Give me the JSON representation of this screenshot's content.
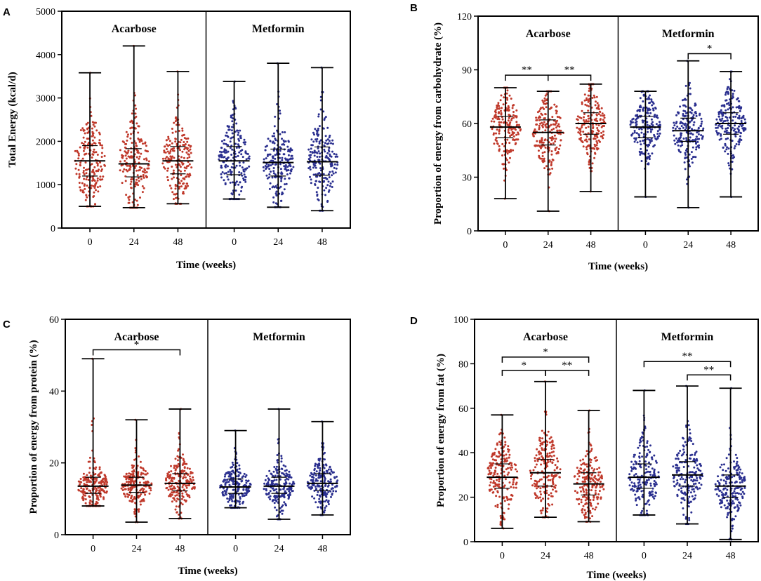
{
  "colors": {
    "acarbose": "#c0392b",
    "metformin": "#2a2f8f",
    "axis": "#000000"
  },
  "chart_data": [
    {
      "panel": "A",
      "type": "scatter",
      "ylabel": "Total Energy (kcal/d)",
      "xlabel": "Time (weeks)",
      "ylim": [
        0,
        5000
      ],
      "yticks": [
        0,
        1000,
        2000,
        3000,
        4000,
        5000
      ],
      "groups": [
        {
          "name": "Acarbose",
          "color_key": "acarbose",
          "timepoints": [
            {
              "week": "0",
              "median": 1550,
              "q1": 1200,
              "q3": 1900,
              "min": 500,
              "max": 3580
            },
            {
              "week": "24",
              "median": 1480,
              "q1": 1180,
              "q3": 1830,
              "min": 470,
              "max": 4200
            },
            {
              "week": "48",
              "median": 1550,
              "q1": 1250,
              "q3": 1880,
              "min": 560,
              "max": 3610
            }
          ]
        },
        {
          "name": "Metformin",
          "color_key": "metformin",
          "timepoints": [
            {
              "week": "0",
              "median": 1550,
              "q1": 1230,
              "q3": 1880,
              "min": 670,
              "max": 3380
            },
            {
              "week": "24",
              "median": 1510,
              "q1": 1200,
              "q3": 1820,
              "min": 480,
              "max": 3800
            },
            {
              "week": "48",
              "median": 1530,
              "q1": 1220,
              "q3": 1870,
              "min": 400,
              "max": 3700
            }
          ]
        }
      ],
      "significance": []
    },
    {
      "panel": "B",
      "type": "scatter",
      "ylabel": "Proportion of energy from carbohydrate (%)",
      "xlabel": "Time (weeks)",
      "ylim": [
        0,
        120
      ],
      "yticks": [
        0,
        30,
        60,
        90,
        120
      ],
      "groups": [
        {
          "name": "Acarbose",
          "color_key": "acarbose",
          "timepoints": [
            {
              "week": "0",
              "median": 58,
              "q1": 52,
              "q3": 64,
              "min": 18,
              "max": 80
            },
            {
              "week": "24",
              "median": 55,
              "q1": 48,
              "q3": 62,
              "min": 11,
              "max": 78
            },
            {
              "week": "48",
              "median": 60,
              "q1": 54,
              "q3": 66,
              "min": 22,
              "max": 82
            }
          ]
        },
        {
          "name": "Metformin",
          "color_key": "metformin",
          "timepoints": [
            {
              "week": "0",
              "median": 58,
              "q1": 52,
              "q3": 64,
              "min": 19,
              "max": 78
            },
            {
              "week": "24",
              "median": 56,
              "q1": 50,
              "q3": 63,
              "min": 13,
              "max": 95
            },
            {
              "week": "48",
              "median": 60,
              "q1": 54,
              "q3": 66,
              "min": 19,
              "max": 89
            }
          ]
        }
      ],
      "significance": [
        {
          "group": 0,
          "from": 0,
          "to": 1,
          "y": 87,
          "label": "**"
        },
        {
          "group": 0,
          "from": 1,
          "to": 2,
          "y": 87,
          "label": "**"
        },
        {
          "group": 1,
          "from": 1,
          "to": 2,
          "y": 99,
          "label": "*"
        }
      ]
    },
    {
      "panel": "C",
      "type": "scatter",
      "ylabel": "Proportion of energy from protein (%)",
      "xlabel": "Time (weeks)",
      "ylim": [
        0,
        60
      ],
      "yticks": [
        0,
        20,
        40,
        60
      ],
      "groups": [
        {
          "name": "Acarbose",
          "color_key": "acarbose",
          "timepoints": [
            {
              "week": "0",
              "median": 13.5,
              "q1": 11.5,
              "q3": 16,
              "min": 8,
              "max": 49
            },
            {
              "week": "24",
              "median": 13.8,
              "q1": 11.8,
              "q3": 16,
              "min": 3.5,
              "max": 32
            },
            {
              "week": "48",
              "median": 14.3,
              "q1": 12.2,
              "q3": 17,
              "min": 4.5,
              "max": 35
            }
          ]
        },
        {
          "name": "Metformin",
          "color_key": "metformin",
          "timepoints": [
            {
              "week": "0",
              "median": 13.3,
              "q1": 11.5,
              "q3": 15.5,
              "min": 7.5,
              "max": 29
            },
            {
              "week": "24",
              "median": 13.5,
              "q1": 11.5,
              "q3": 16,
              "min": 4.3,
              "max": 35
            },
            {
              "week": "48",
              "median": 14.3,
              "q1": 12.3,
              "q3": 17,
              "min": 5.5,
              "max": 31.5
            }
          ]
        }
      ],
      "significance": [
        {
          "group": 0,
          "from": 0,
          "to": 2,
          "y": 51.5,
          "label": "*"
        }
      ]
    },
    {
      "panel": "D",
      "type": "scatter",
      "ylabel": "Proportion of energy from fat (%)",
      "xlabel": "Time (weeks)",
      "ylim": [
        0,
        100
      ],
      "yticks": [
        0,
        20,
        40,
        60,
        80,
        100
      ],
      "groups": [
        {
          "name": "Acarbose",
          "color_key": "acarbose",
          "timepoints": [
            {
              "week": "0",
              "median": 29,
              "q1": 24,
              "q3": 35,
              "min": 6,
              "max": 57
            },
            {
              "week": "24",
              "median": 31,
              "q1": 25,
              "q3": 37,
              "min": 11,
              "max": 72
            },
            {
              "week": "48",
              "median": 26,
              "q1": 21,
              "q3": 31,
              "min": 9,
              "max": 59
            }
          ]
        },
        {
          "name": "Metformin",
          "color_key": "metformin",
          "timepoints": [
            {
              "week": "0",
              "median": 29,
              "q1": 24,
              "q3": 35,
              "min": 12,
              "max": 68
            },
            {
              "week": "24",
              "median": 30,
              "q1": 25,
              "q3": 36,
              "min": 8,
              "max": 70
            },
            {
              "week": "48",
              "median": 25,
              "q1": 20,
              "q3": 30,
              "min": 1,
              "max": 69
            }
          ]
        }
      ],
      "significance": [
        {
          "group": 0,
          "from": 0,
          "to": 2,
          "y": 83,
          "label": "*"
        },
        {
          "group": 0,
          "from": 0,
          "to": 1,
          "y": 77,
          "label": "*"
        },
        {
          "group": 0,
          "from": 1,
          "to": 2,
          "y": 77,
          "label": "**"
        },
        {
          "group": 1,
          "from": 0,
          "to": 2,
          "y": 81,
          "label": "**"
        },
        {
          "group": 1,
          "from": 1,
          "to": 2,
          "y": 75,
          "label": "**"
        }
      ]
    }
  ]
}
